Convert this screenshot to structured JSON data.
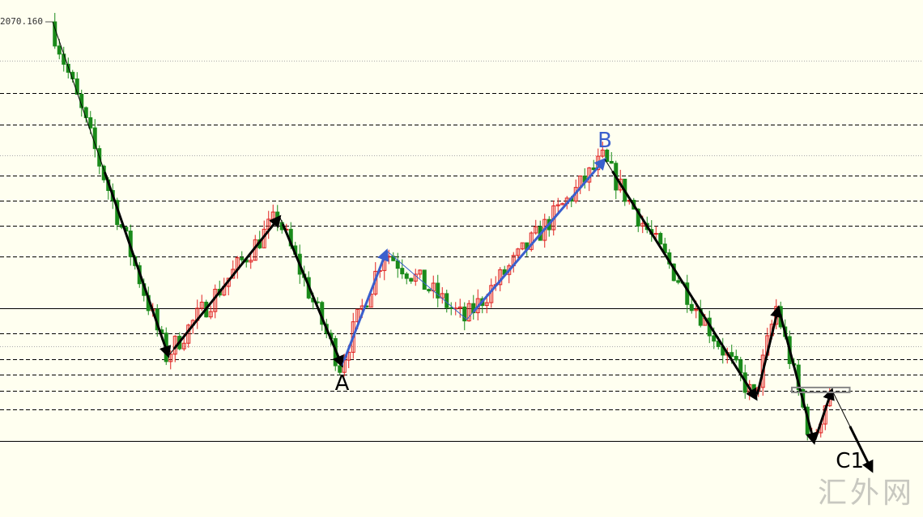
{
  "chart_data": {
    "type": "candlestick",
    "top_price_label": "2070.160",
    "colors": {
      "background": "#fffff0",
      "up": "#e02020",
      "down": "#1a8a1a",
      "arrow_black": "#000000",
      "arrow_blue": "#3a5fcd"
    },
    "pivots": [
      {
        "bar": 12,
        "price": 2070.16
      },
      {
        "bar": 38,
        "price": 1863.7
      },
      {
        "bar": 63,
        "price": 1949.7
      },
      {
        "bar": 77,
        "price": 1857.7,
        "label": "A"
      },
      {
        "bar": 87,
        "price": 1928.7
      },
      {
        "bar": 105,
        "price": 1886.2
      },
      {
        "bar": 136,
        "price": 1985.2,
        "label": "B"
      },
      {
        "bar": 170,
        "price": 1837.2
      },
      {
        "bar": 175,
        "price": 1893.7
      },
      {
        "bar": 183,
        "price": 1810.2
      },
      {
        "bar": 187,
        "price": 1842.7
      }
    ],
    "projection": {
      "bar": 196,
      "price": 1792.7,
      "label": "C1"
    },
    "blue_legs": [
      3,
      4,
      5
    ],
    "horizontal_levels": [
      {
        "price": 2046.2,
        "style": "dotted"
      },
      {
        "price": 2026.2,
        "style": "dashed"
      },
      {
        "price": 2006.7,
        "style": "dashed"
      },
      {
        "price": 1987.7,
        "style": "dotted"
      },
      {
        "price": 1975.2,
        "style": "dashed"
      },
      {
        "price": 1959.7,
        "style": "dashed"
      },
      {
        "price": 1944.2,
        "style": "dashed"
      },
      {
        "price": 1925.2,
        "style": "dashed"
      },
      {
        "price": 1893.2,
        "style": "solid"
      },
      {
        "price": 1877.7,
        "style": "dashed"
      },
      {
        "price": 1869.7,
        "style": "dotted"
      },
      {
        "price": 1861.7,
        "style": "dashed"
      },
      {
        "price": 1852.2,
        "style": "dashed"
      },
      {
        "price": 1842.2,
        "style": "dashed"
      },
      {
        "price": 1830.7,
        "style": "dashed"
      },
      {
        "price": 1811.2,
        "style": "solid"
      }
    ],
    "box_zone": {
      "bars": [
        178,
        191
      ],
      "price": 1842.7
    }
  },
  "watermark": "汇外网"
}
